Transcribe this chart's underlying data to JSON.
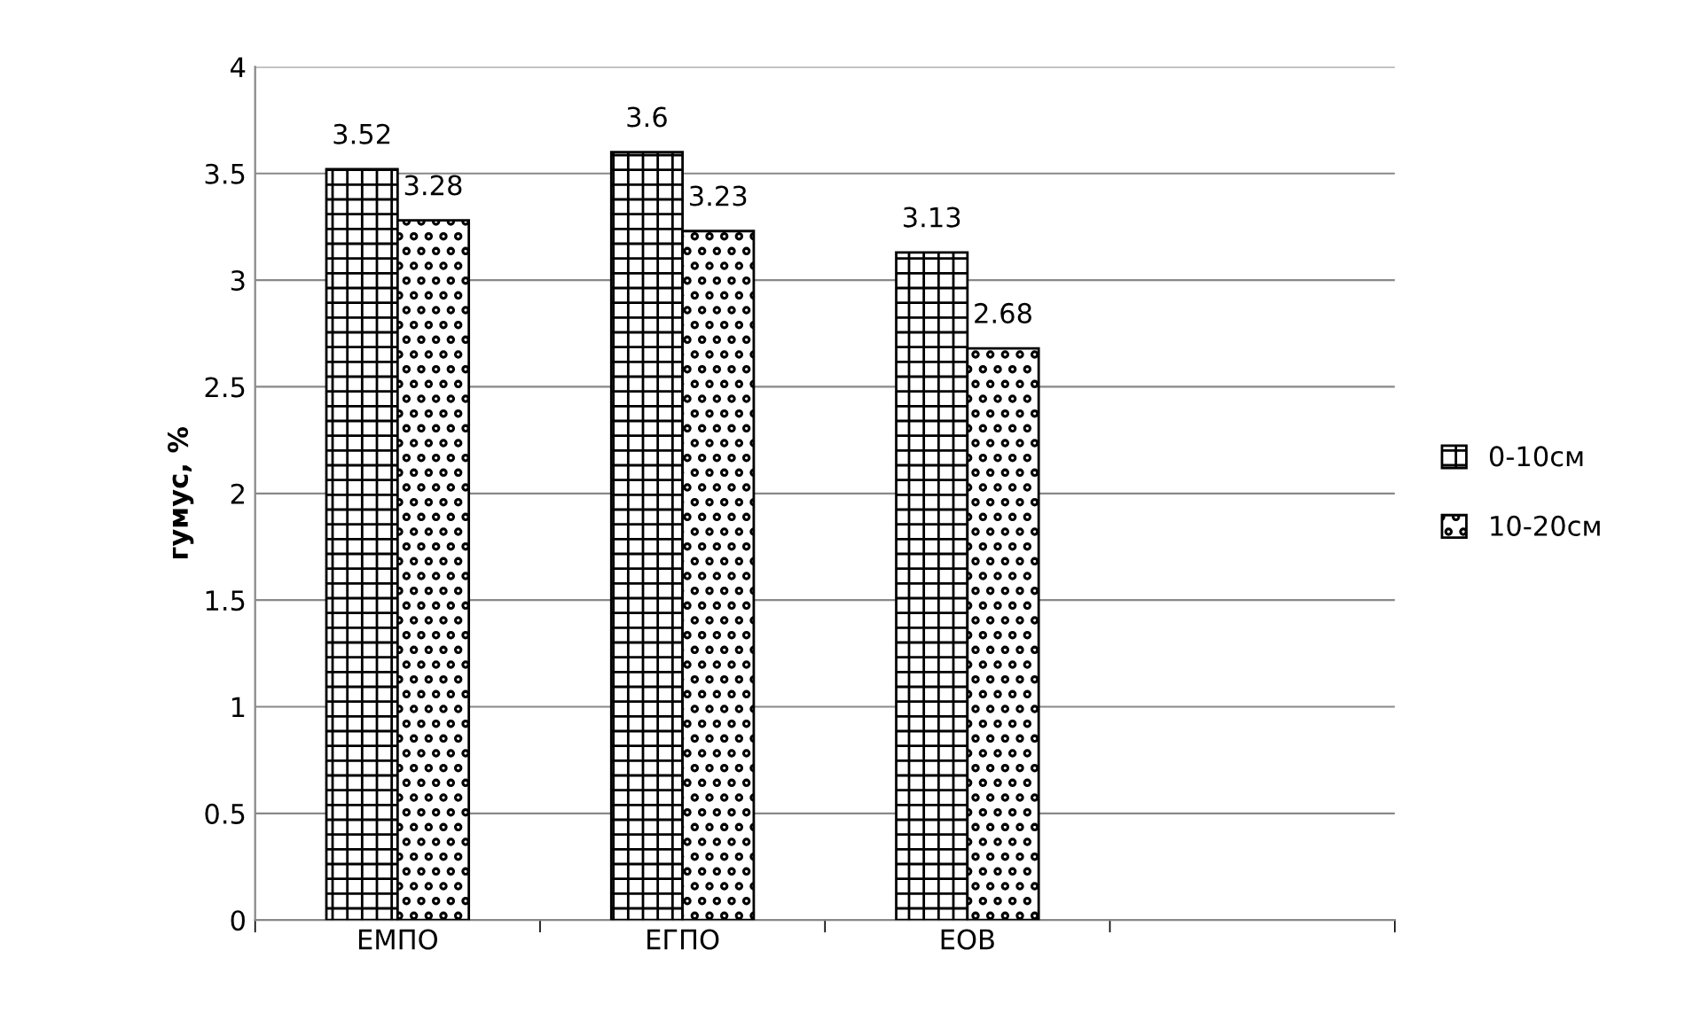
{
  "chart_data": {
    "type": "bar",
    "ylabel": "гумус, %",
    "categories": [
      "ЕМПО",
      "ЕГПО",
      "ЕОВ",
      null
    ],
    "series": [
      {
        "name": "0-10см",
        "color": "#000000",
        "values": [
          3.52,
          3.6,
          3.13,
          null
        ]
      },
      {
        "name": "10-20см",
        "color": "#000000",
        "values": [
          3.28,
          3.23,
          2.68,
          null
        ]
      }
    ],
    "ylim": [
      0,
      4
    ],
    "yticks": [
      0,
      0.5,
      1,
      1.5,
      2,
      2.5,
      3,
      3.5,
      4
    ],
    "grid": "y",
    "legend": "right",
    "data_labels": true
  }
}
